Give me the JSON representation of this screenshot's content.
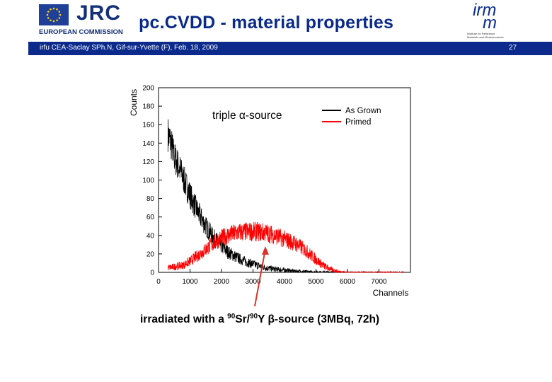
{
  "header": {
    "title": "pc.CVDD - material properties",
    "bar_text": "irfu CEA-Saclay SPh.N, Gif-sur-Yvette (F), Feb. 18, 2009",
    "slide_number": "27",
    "logo_left_text": "JRC",
    "logo_left_subtext": "EUROPEAN COMMISSION",
    "logo_right_text": "irm",
    "logo_right_text2": "m",
    "logo_right_subtext1": "Institute for Reference",
    "logo_right_subtext2": "Materials and Measurements"
  },
  "colors": {
    "accent": "#0b2a8c",
    "as_grown": "#000000",
    "primed": "#ff0000"
  },
  "annotation": {
    "text_prefix": "irradiated with a ",
    "iso1": "90",
    "sr": "Sr/",
    "iso2": "90",
    "rest": "Y β-source (3MBq, 72h)"
  },
  "chart_data": {
    "type": "line",
    "title": "triple α-source",
    "xlabel": "Channels",
    "ylabel": "Counts",
    "xlim": [
      0,
      8000
    ],
    "ylim": [
      0,
      200
    ],
    "xticks": [
      0,
      1000,
      2000,
      3000,
      4000,
      5000,
      6000,
      7000
    ],
    "yticks": [
      0,
      20,
      40,
      60,
      80,
      100,
      120,
      140,
      160,
      180,
      200
    ],
    "legend_position": "top-right",
    "grid": false,
    "series": [
      {
        "name": "As Grown",
        "color": "#000000",
        "x": [
          300,
          400,
          500,
          700,
          900,
          1100,
          1300,
          1500,
          1700,
          1900,
          2200,
          2500,
          2800,
          3100,
          3400,
          3700,
          4000,
          4300,
          4600,
          5000,
          5500,
          6000,
          7000,
          7800
        ],
        "y": [
          150,
          140,
          125,
          110,
          92,
          76,
          62,
          50,
          40,
          32,
          22,
          16,
          11,
          8,
          5,
          3.5,
          2.5,
          1.5,
          1,
          0.5,
          0.3,
          0.1,
          0,
          0
        ]
      },
      {
        "name": "Primed",
        "color": "#ff0000",
        "x": [
          300,
          500,
          800,
          1000,
          1200,
          1400,
          1600,
          1800,
          2000,
          2200,
          2500,
          2800,
          3100,
          3400,
          3700,
          4000,
          4300,
          4500,
          4700,
          4900,
          5100,
          5300,
          5500,
          5700,
          6000,
          7000,
          7800
        ],
        "y": [
          5,
          6,
          8,
          12,
          17,
          22,
          28,
          33,
          37,
          40,
          43,
          44,
          44,
          43,
          40,
          36,
          32,
          28,
          23,
          17,
          11,
          6,
          3,
          1,
          0,
          0,
          0
        ]
      }
    ]
  }
}
